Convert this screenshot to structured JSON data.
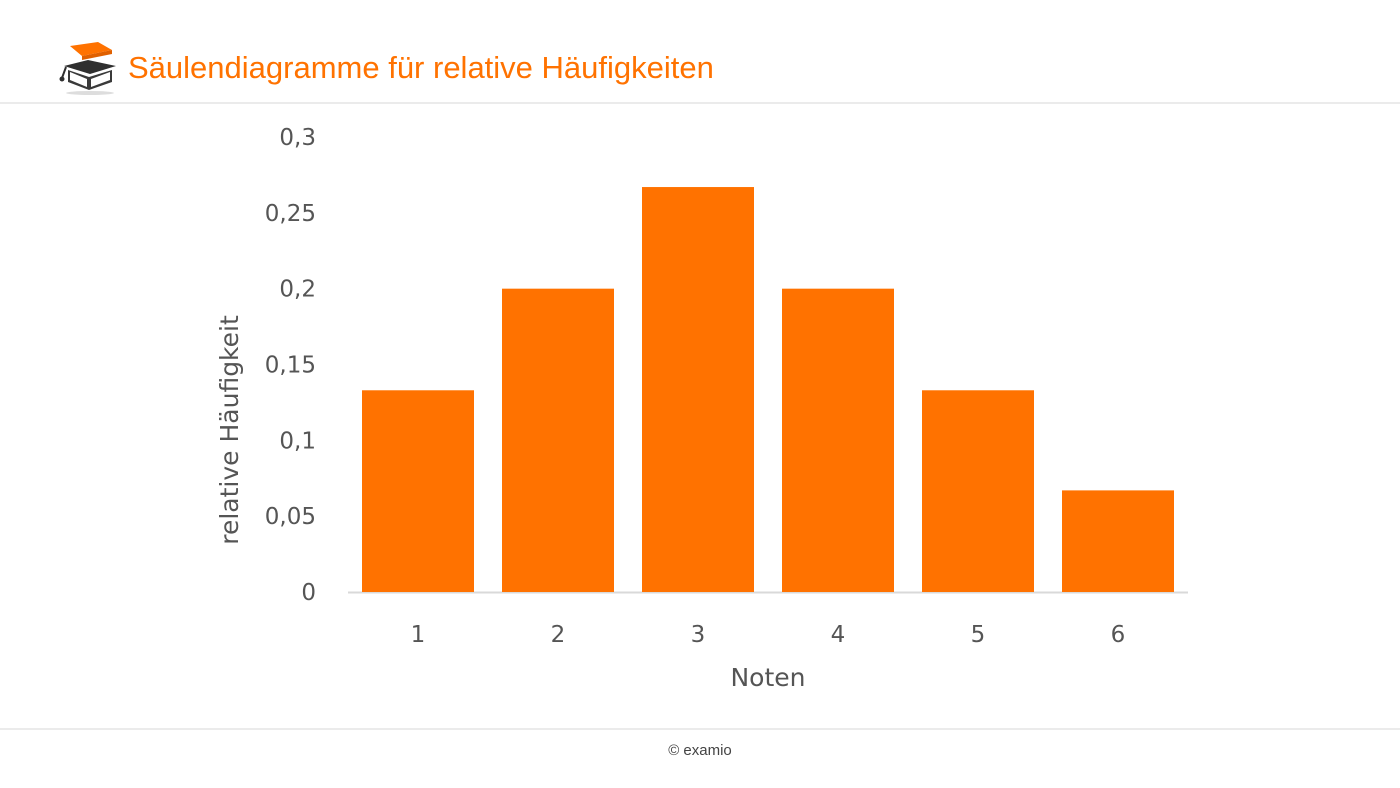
{
  "header": {
    "title": "Säulendiagramme für relative Häufigkeiten",
    "logo_icon": "graduation-cap-book-icon"
  },
  "footer": {
    "copyright": "© examio"
  },
  "colors": {
    "accent": "#ff7200",
    "bar": "#ff7200",
    "text": "#555555",
    "axis": "#d9d9d9"
  },
  "chart_data": {
    "type": "bar",
    "categories": [
      "1",
      "2",
      "3",
      "4",
      "5",
      "6"
    ],
    "values": [
      0.133,
      0.2,
      0.267,
      0.2,
      0.133,
      0.067
    ],
    "ylim": [
      0,
      0.3
    ],
    "yticks": [
      "0",
      "0,05",
      "0,1",
      "0,15",
      "0,2",
      "0,25",
      "0,3"
    ],
    "xlabel": "Noten",
    "ylabel": "relative Häufigkeit",
    "grid": false,
    "legend": "none"
  }
}
